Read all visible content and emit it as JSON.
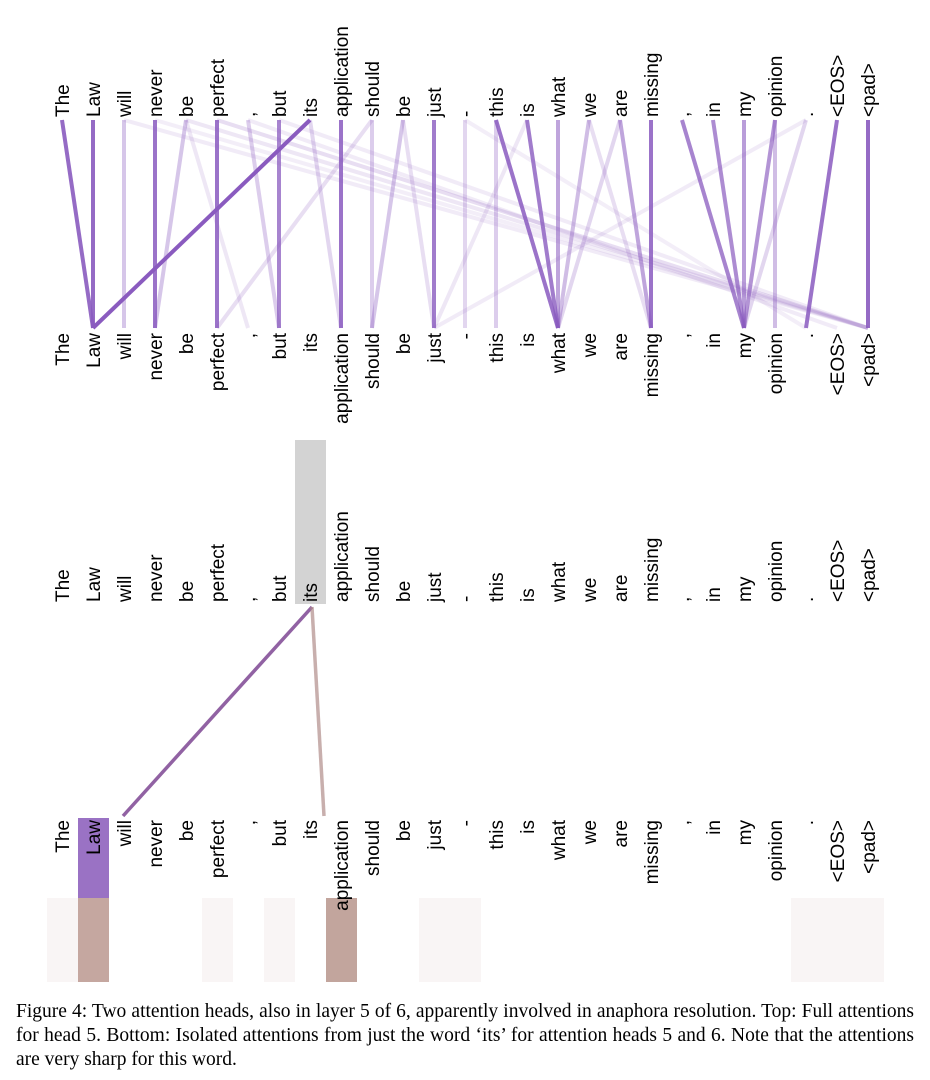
{
  "tokens": [
    "The",
    "Law",
    "will",
    "never",
    "be",
    "perfect",
    ",",
    "but",
    "its",
    "application",
    "should",
    "be",
    "just",
    "-",
    "this",
    "is",
    "what",
    "we",
    "are",
    "missing",
    ",",
    "in",
    "my",
    "opinion",
    ".",
    "<EOS>",
    "<pad>"
  ],
  "colors": {
    "full_head_line": "#8a5bbf",
    "head5_isolated": "#8b5a9e",
    "head6_isolated": "#b08d8a",
    "query_highlight": "#d3d3d3",
    "head5_block": "#9a72c4",
    "head6_block": "#c5a7a0"
  },
  "full_attention_links": [
    {
      "from": 0,
      "to": 1,
      "w": 0.9
    },
    {
      "from": 1,
      "to": 1,
      "w": 0.9
    },
    {
      "from": 2,
      "to": 2,
      "w": 0.35
    },
    {
      "from": 2,
      "to": 26,
      "w": 0.12
    },
    {
      "from": 3,
      "to": 3,
      "w": 0.85
    },
    {
      "from": 3,
      "to": 26,
      "w": 0.1
    },
    {
      "from": 4,
      "to": 3,
      "w": 0.35
    },
    {
      "from": 4,
      "to": 6,
      "w": 0.15
    },
    {
      "from": 4,
      "to": 26,
      "w": 0.15
    },
    {
      "from": 5,
      "to": 5,
      "w": 0.85
    },
    {
      "from": 5,
      "to": 26,
      "w": 0.2
    },
    {
      "from": 6,
      "to": 7,
      "w": 0.3
    },
    {
      "from": 6,
      "to": 25,
      "w": 0.12
    },
    {
      "from": 7,
      "to": 7,
      "w": 0.75
    },
    {
      "from": 7,
      "to": 26,
      "w": 0.12
    },
    {
      "from": 8,
      "to": 1,
      "w": 1.0
    },
    {
      "from": 8,
      "to": 9,
      "w": 0.25
    },
    {
      "from": 9,
      "to": 9,
      "w": 0.85
    },
    {
      "from": 10,
      "to": 10,
      "w": 0.3
    },
    {
      "from": 10,
      "to": 5,
      "w": 0.2
    },
    {
      "from": 11,
      "to": 10,
      "w": 0.35
    },
    {
      "from": 11,
      "to": 12,
      "w": 0.2
    },
    {
      "from": 12,
      "to": 12,
      "w": 0.8
    },
    {
      "from": 13,
      "to": 13,
      "w": 0.25
    },
    {
      "from": 13,
      "to": 24,
      "w": 0.1
    },
    {
      "from": 14,
      "to": 14,
      "w": 0.3
    },
    {
      "from": 14,
      "to": 16,
      "w": 0.85
    },
    {
      "from": 15,
      "to": 16,
      "w": 0.8
    },
    {
      "from": 15,
      "to": 12,
      "w": 0.15
    },
    {
      "from": 16,
      "to": 16,
      "w": 0.55
    },
    {
      "from": 17,
      "to": 16,
      "w": 0.4
    },
    {
      "from": 17,
      "to": 19,
      "w": 0.2
    },
    {
      "from": 18,
      "to": 19,
      "w": 0.55
    },
    {
      "from": 18,
      "to": 16,
      "w": 0.25
    },
    {
      "from": 19,
      "to": 19,
      "w": 0.85
    },
    {
      "from": 20,
      "to": 22,
      "w": 0.75
    },
    {
      "from": 21,
      "to": 22,
      "w": 0.7
    },
    {
      "from": 22,
      "to": 22,
      "w": 0.6
    },
    {
      "from": 23,
      "to": 22,
      "w": 0.65
    },
    {
      "from": 23,
      "to": 23,
      "w": 0.4
    },
    {
      "from": 24,
      "to": 22,
      "w": 0.25
    },
    {
      "from": 24,
      "to": 12,
      "w": 0.12
    },
    {
      "from": 25,
      "to": 24,
      "w": 0.85
    },
    {
      "from": 26,
      "to": 26,
      "w": 0.9
    }
  ],
  "isolated_query_index": 8,
  "isolated_links": [
    {
      "to": 1,
      "head": "5",
      "w": 0.95
    },
    {
      "to": 9,
      "head": "6",
      "w": 0.7
    }
  ],
  "caption": "Figure 4: Two attention heads, also in layer 5 of 6, apparently involved in anaphora resolution. Top: Full attentions for head 5. Bottom: Isolated attentions from just the word ‘its’ for attention heads 5 and 6. Note that the attentions are very sharp for this word."
}
